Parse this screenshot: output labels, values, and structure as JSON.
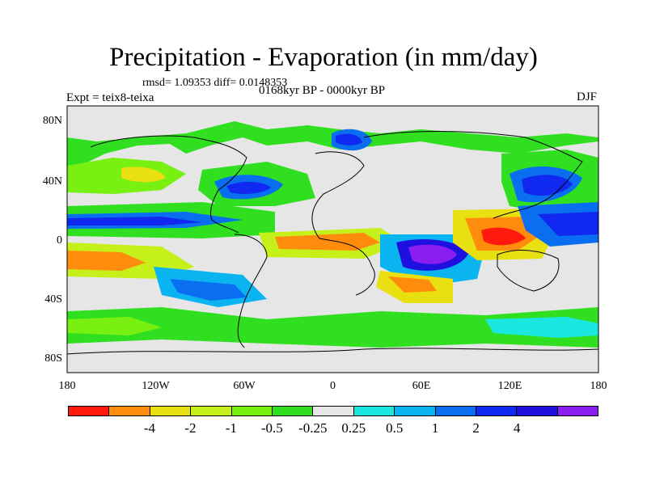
{
  "figure": {
    "title": "Precipitation - Evaporation (in mm/day)",
    "stats": "rmsd= 1.09353  diff= 0.0148353",
    "experiment": "Expt = teix8-teixa",
    "period": "0168kyr BP - 0000kyr BP",
    "season": "DJF"
  },
  "map": {
    "projection": "cylindrical equidistant",
    "lon_ticks": [
      "180",
      "120W",
      "60W",
      "0",
      "60E",
      "120E",
      "180"
    ],
    "lat_ticks": [
      "80N",
      "40N",
      "0",
      "40S",
      "80S"
    ],
    "background_color": "#e6e6e6",
    "coastline_color": "#000000"
  },
  "colorbar": {
    "colors": [
      "#ff1a0d",
      "#ff8c0d",
      "#e8e010",
      "#c6f01a",
      "#78f012",
      "#30e020",
      "#e6e6e6",
      "#1ae8e0",
      "#0ab4f0",
      "#0a6ef0",
      "#1028f0",
      "#2010e0",
      "#8a1ef0"
    ],
    "labels": [
      "-4",
      "-2",
      "-1",
      "-0.5",
      "-0.25",
      "0.25",
      "0.5",
      "1",
      "2",
      "4"
    ]
  }
}
